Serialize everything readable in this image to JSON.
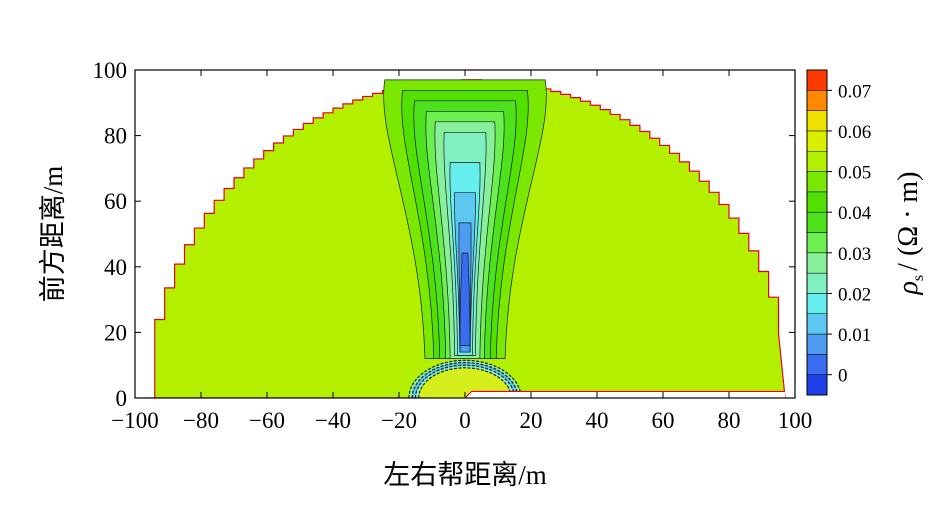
{
  "chart_data": {
    "type": "heatmap",
    "subtype": "filled-contour",
    "xlabel": "左右帮距离/m",
    "ylabel": "前方距离/m",
    "xlim": [
      -100,
      100
    ],
    "ylim": [
      0,
      100
    ],
    "x_ticks": [
      "−100",
      "−80",
      "−60",
      "−40",
      "−20",
      "0",
      "20",
      "40",
      "60",
      "80",
      "100"
    ],
    "y_ticks": [
      "0",
      "20",
      "40",
      "60",
      "80",
      "100"
    ],
    "colorbar": {
      "title_symbol": "ρ",
      "title_subscript": "s",
      "title_unit": "/ (Ω · m)",
      "range": [
        0,
        0.08
      ],
      "tick_labels": [
        "0",
        "0.01",
        "0.02",
        "0.03",
        "0.04",
        "0.05",
        "0.06",
        "0.07"
      ],
      "levels": [
        0,
        0.005,
        0.01,
        0.015,
        0.02,
        0.025,
        0.03,
        0.035,
        0.04,
        0.045,
        0.05,
        0.055,
        0.06,
        0.065,
        0.07,
        0.075,
        0.08
      ],
      "colors": [
        "#1f3fe8",
        "#3a6cf0",
        "#4d9cf2",
        "#5cc8f2",
        "#66eeee",
        "#7ff0c0",
        "#88f09a",
        "#6cf050",
        "#4ee21c",
        "#52e000",
        "#7ae800",
        "#b2f000",
        "#d8f000",
        "#f0e000",
        "#ff8800",
        "#ff3a00",
        "#ff0000"
      ]
    },
    "background_value": 0.058,
    "contour_region": {
      "shape": "semicircle",
      "radius": 97,
      "x_range": [
        -97,
        97
      ],
      "y_range": [
        0,
        97
      ],
      "outline_color": "#e8001c"
    },
    "features": [
      {
        "name": "low-resistivity-column",
        "x_center": 0,
        "y_range": [
          14,
          97
        ],
        "min_value": 0.005,
        "note": "narrow low-value plume widening with distance"
      },
      {
        "name": "high-resistivity-core",
        "x_center": 0,
        "y_range": [
          0,
          6
        ],
        "max_value": 0.07
      },
      {
        "name": "ring-contours",
        "x_range": [
          -17,
          17
        ],
        "y_range": [
          0,
          12
        ]
      }
    ]
  }
}
